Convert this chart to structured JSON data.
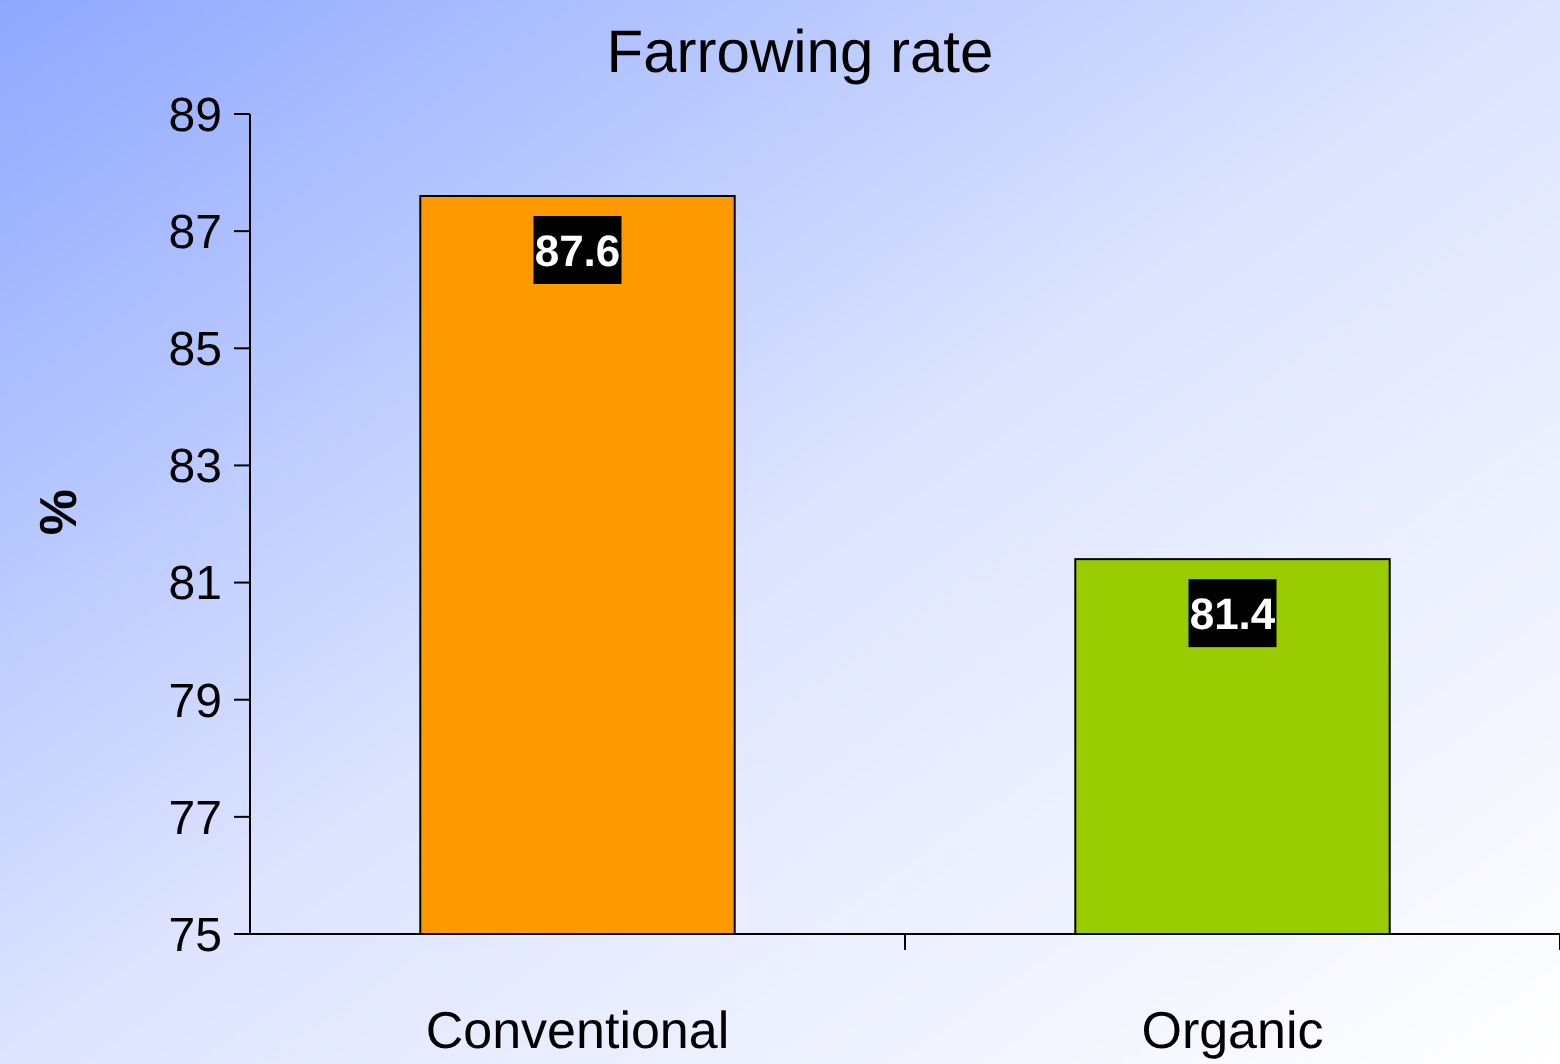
{
  "chart_data": {
    "type": "bar",
    "title": "Farrowing rate",
    "ylabel": "%",
    "categories": [
      "Conventional",
      "Organic"
    ],
    "values": [
      87.6,
      81.4
    ],
    "colors": [
      "#ff9900",
      "#99cc00"
    ],
    "ylim": [
      75,
      89
    ],
    "yticks": [
      75,
      77,
      79,
      81,
      83,
      85,
      87,
      89
    ],
    "data_labels": true
  }
}
